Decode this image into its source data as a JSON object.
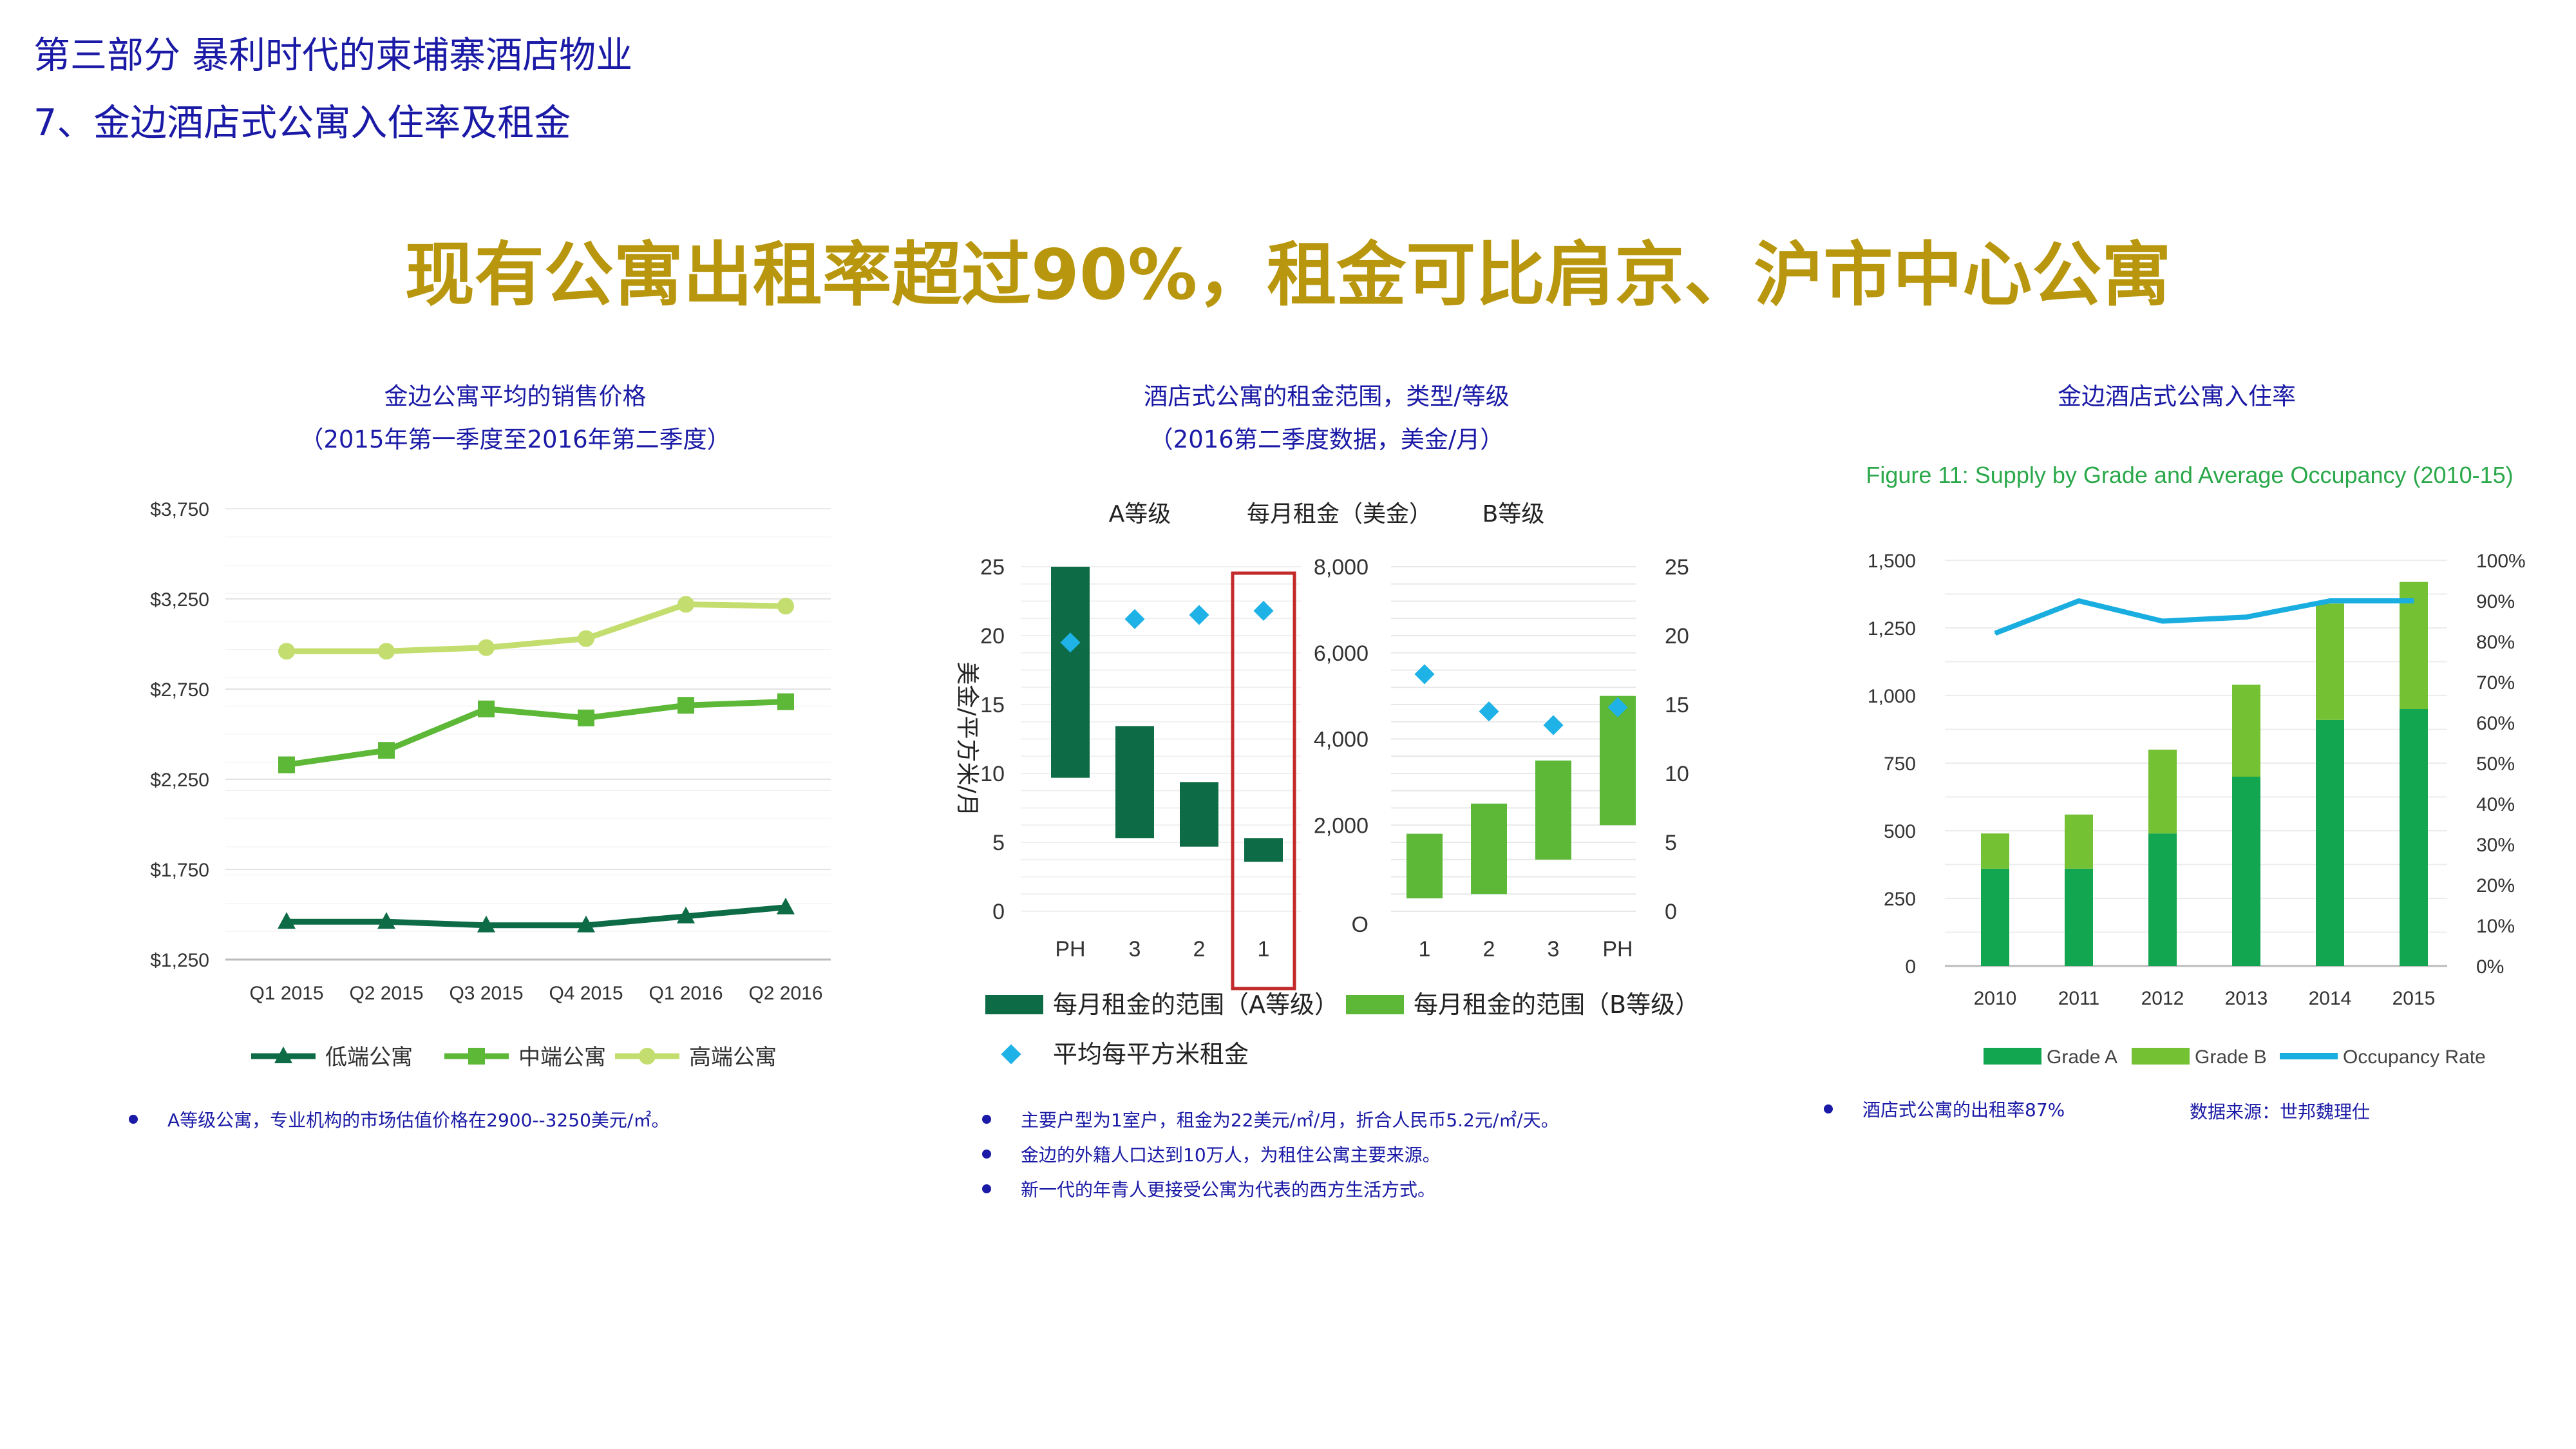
{
  "header": {
    "section": "第三部分 暴利时代的柬埔寨酒店物业",
    "subsection": "7、金边酒店式公寓入住率及租金"
  },
  "headline": "现有公寓出租率超过90%，租金可比肩京、沪市中心公寓",
  "colors": {
    "dark_green": "#0d6b46",
    "mid_green": "#5cb836",
    "light_green": "#c3de6e",
    "grade_a": "#12a650",
    "grade_b": "#74c134",
    "occupancy": "#1aaee0",
    "avg_marker": "#1fb2e6",
    "highlight": "#c32a2a",
    "title_gold": "#b8960e",
    "text_blue": "#1a1aa6"
  },
  "chart_data": [
    {
      "type": "line",
      "title": "金边公寓平均的销售价格",
      "subtitle": "（2015年第一季度至2016年第二季度）",
      "categories": [
        "Q1 2015",
        "Q2 2015",
        "Q3 2015",
        "Q4 2015",
        "Q1 2016",
        "Q2 2016"
      ],
      "y_ticks": [
        "$1,250",
        "$1,750",
        "$2,250",
        "$2,750",
        "$3,250",
        "$3,750"
      ],
      "ylim": [
        1250,
        3750
      ],
      "series": [
        {
          "name": "低端公寓",
          "values": [
            1460,
            1460,
            1440,
            1440,
            1490,
            1540
          ]
        },
        {
          "name": "中端公寓",
          "values": [
            2330,
            2410,
            2640,
            2590,
            2660,
            2680
          ]
        },
        {
          "name": "高端公寓",
          "values": [
            2960,
            2960,
            2980,
            3030,
            3220,
            3210
          ]
        }
      ],
      "grid": "horizontal"
    },
    {
      "type": "bar",
      "title": "酒店式公寓的租金范围，类型/等级",
      "subtitle": "（2016第二季度数据，美金/月）",
      "group_labels": {
        "a": "A等级",
        "mid": "每月租金（美金）",
        "b": "B等级"
      },
      "left_axis_label": "美金/平方米/月",
      "left_ticks": [
        "0",
        "5",
        "10",
        "15",
        "20",
        "25"
      ],
      "mid_ticks": [
        "O",
        "2,000",
        "4,000",
        "6,000",
        "8,000"
      ],
      "right_ticks": [
        "0",
        "5",
        "10",
        "15",
        "20",
        "25"
      ],
      "grade_a": {
        "categories": [
          "PH",
          "3",
          "2",
          "1"
        ],
        "rent_range": [
          [
            3100,
            8000
          ],
          [
            1700,
            4300
          ],
          [
            1500,
            3000
          ],
          [
            1150,
            1700
          ]
        ],
        "avg_per_sqm": [
          19.5,
          21.2,
          21.5,
          21.8
        ],
        "highlight_index": 3
      },
      "grade_b": {
        "categories": [
          "1",
          "2",
          "3",
          "PH"
        ],
        "rent_range": [
          [
            300,
            1800
          ],
          [
            400,
            2500
          ],
          [
            1200,
            3500
          ],
          [
            2000,
            5000
          ]
        ],
        "avg_per_sqm": [
          17.2,
          14.5,
          13.5,
          14.8
        ]
      },
      "legend": [
        "每月租金的范围（A等级）",
        "每月租金的范围（B等级）",
        "平均每平方米租金"
      ]
    },
    {
      "type": "bar",
      "title": "金边酒店式公寓入住率",
      "figure_title": "Figure 11: Supply by Grade and Average Occupancy (2010-15)",
      "categories": [
        "2010",
        "2011",
        "2012",
        "2013",
        "2014",
        "2015"
      ],
      "left_ticks": [
        "0",
        "250",
        "500",
        "750",
        "1,000",
        "1,250",
        "1,500"
      ],
      "right_ticks": [
        "0%",
        "10%",
        "20%",
        "30%",
        "40%",
        "50%",
        "60%",
        "70%",
        "80%",
        "90%",
        "100%"
      ],
      "ylim": [
        0,
        1500
      ],
      "series": [
        {
          "name": "Grade A",
          "values": [
            360,
            360,
            490,
            700,
            910,
            950
          ]
        },
        {
          "name": "Grade B",
          "values": [
            130,
            200,
            310,
            340,
            430,
            470
          ]
        },
        {
          "name": "Occupancy Rate",
          "values": [
            82,
            90,
            85,
            86,
            90,
            90
          ],
          "unit": "%"
        }
      ]
    }
  ],
  "bullets": {
    "left": [
      "A等级公寓，专业机构的市场估值价格在2900--3250美元/㎡。"
    ],
    "middle": [
      "主要户型为1室户，租金为22美元/㎡/月，折合人民币5.2元/㎡/天。",
      "金边的外籍人口达到10万人，为租住公寓主要来源。",
      "新一代的年青人更接受公寓为代表的西方生活方式。"
    ],
    "right": [
      "酒店式公寓的出租率87%"
    ],
    "source": "数据来源：世邦魏理仕"
  }
}
